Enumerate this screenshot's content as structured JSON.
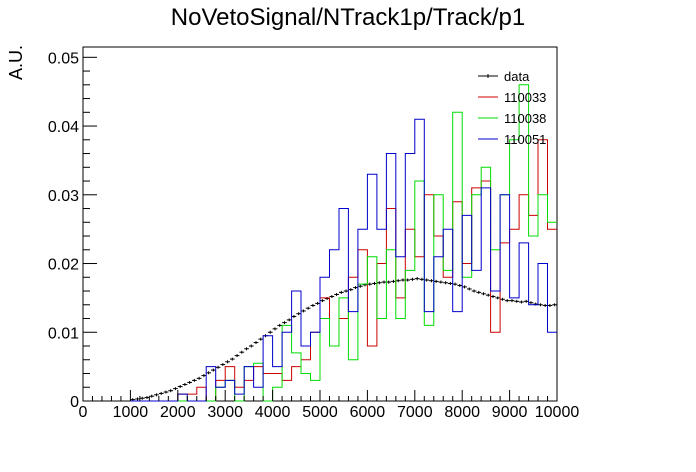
{
  "chart_data": {
    "type": "line",
    "title": "NoVetoSignal/NTrack1p/Track/p1",
    "xlabel": "",
    "ylabel": "A.U.",
    "xlim": [
      0,
      10000
    ],
    "ylim": [
      0,
      0.0515
    ],
    "x_ticks": [
      "0",
      "1000",
      "2000",
      "3000",
      "4000",
      "5000",
      "6000",
      "7000",
      "8000",
      "9000",
      "10000"
    ],
    "y_ticks": [
      "0",
      "0.01",
      "0.02",
      "0.03",
      "0.04",
      "0.05"
    ],
    "grid": false,
    "legend_position": "top-right",
    "series": [
      {
        "name": "data",
        "style": "points",
        "color": "#000000",
        "x_start": 1000,
        "bin_width": 100,
        "values": [
          0.0002,
          0.0003,
          0.0004,
          0.0005,
          0.0007,
          0.0009,
          0.0011,
          0.0013,
          0.0015,
          0.0018,
          0.0021,
          0.0024,
          0.0027,
          0.003,
          0.0033,
          0.0037,
          0.0041,
          0.0045,
          0.0049,
          0.0053,
          0.0057,
          0.0061,
          0.0066,
          0.0071,
          0.0076,
          0.008,
          0.0085,
          0.009,
          0.0095,
          0.01,
          0.0105,
          0.011,
          0.0114,
          0.0118,
          0.0123,
          0.0127,
          0.0131,
          0.0135,
          0.0139,
          0.0142,
          0.0146,
          0.0149,
          0.0152,
          0.0155,
          0.0158,
          0.016,
          0.0162,
          0.0165,
          0.0167,
          0.0169,
          0.017,
          0.0171,
          0.0172,
          0.0173,
          0.0173,
          0.0174,
          0.0175,
          0.0176,
          0.0176,
          0.0177,
          0.0178,
          0.0177,
          0.0176,
          0.0175,
          0.0174,
          0.0173,
          0.0172,
          0.0171,
          0.017,
          0.0168,
          0.0166,
          0.0163,
          0.016,
          0.0158,
          0.0156,
          0.0154,
          0.0152,
          0.015,
          0.0148,
          0.0146,
          0.0146,
          0.0145,
          0.0144,
          0.0145,
          0.0143,
          0.0141,
          0.014,
          0.0139,
          0.0139,
          0.014
        ]
      },
      {
        "name": "110033",
        "style": "step",
        "color": "#cc0000",
        "x_start": 1000,
        "bin_width": 200,
        "values": [
          0,
          0,
          0,
          0,
          0,
          0.001,
          0.001,
          0.002,
          0,
          0.003,
          0.005,
          0.002,
          0.003,
          0.005,
          0.004,
          0.004,
          0.003,
          0.005,
          0.006,
          0.01,
          0.015,
          0.008,
          0.012,
          0.018,
          0.022,
          0.008,
          0.02,
          0.028,
          0.015,
          0.025,
          0.021,
          0.03,
          0.024,
          0.018,
          0.029,
          0.02,
          0.031,
          0.032,
          0.01,
          0.023,
          0.025,
          0.03,
          0.027,
          0.038,
          0.025
        ]
      },
      {
        "name": "110038",
        "style": "step",
        "color": "#00dd00",
        "x_start": 1000,
        "bin_width": 200,
        "values": [
          0,
          0,
          0,
          0,
          0,
          0,
          0,
          0,
          0,
          0.002,
          0.003,
          0,
          0.005,
          0.0055,
          0,
          0.002,
          0.011,
          0.007,
          0.004,
          0.003,
          0.012,
          0.008,
          0.015,
          0.006,
          0.017,
          0.021,
          0.012,
          0.022,
          0.012,
          0.019,
          0.032,
          0.011,
          0.03,
          0.019,
          0.042,
          0.018,
          0.03,
          0.034,
          0.022,
          0.03,
          0.038,
          0.046,
          0.024,
          0.03,
          0.026
        ]
      },
      {
        "name": "110051",
        "style": "step",
        "color": "#0000cc",
        "x_start": 1000,
        "bin_width": 200,
        "values": [
          0,
          0,
          0,
          0,
          0,
          0.001,
          0,
          0,
          0.005,
          0.002,
          0.003,
          0.001,
          0.005,
          0.002,
          0.0095,
          0.005,
          0.01,
          0.016,
          0.008,
          0.01,
          0.018,
          0.022,
          0.028,
          0.013,
          0.025,
          0.033,
          0.025,
          0.036,
          0.021,
          0.036,
          0.041,
          0.013,
          0.021,
          0.025,
          0.013,
          0.027,
          0.019,
          0.031,
          0.016,
          0.03,
          0.015,
          0.023,
          0.014,
          0.02,
          0.01
        ]
      }
    ]
  }
}
